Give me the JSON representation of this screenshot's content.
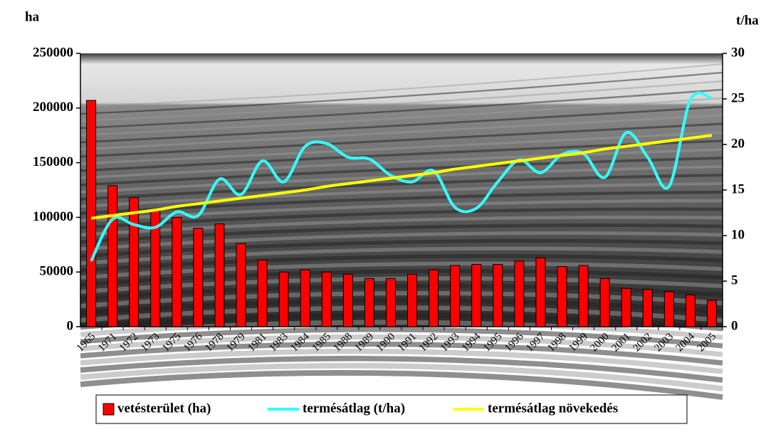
{
  "chart_data": {
    "type": "bar-line",
    "y_title": "ha",
    "y2_title": "t/ha",
    "categories": [
      "1965",
      "1971",
      "1972",
      "1973",
      "1975",
      "1976",
      "1978",
      "1979",
      "1981",
      "1983",
      "1984",
      "1985",
      "1988",
      "1989",
      "1990",
      "1991",
      "1992",
      "1993",
      "1994",
      "1995",
      "1996",
      "1997",
      "1998",
      "1999",
      "2000",
      "2001",
      "2002",
      "2003",
      "2004",
      "2005"
    ],
    "series": [
      {
        "name": "vetésterület (ha)",
        "type": "bar",
        "color": "#ff0000",
        "values": [
          207000,
          129000,
          118000,
          106000,
          100000,
          90000,
          94000,
          76000,
          61000,
          50000,
          52000,
          50000,
          48000,
          44000,
          44000,
          48000,
          52000,
          56000,
          57000,
          57000,
          60000,
          63000,
          55000,
          56000,
          44000,
          35000,
          34000,
          32000,
          29000,
          24000
        ]
      },
      {
        "name": "termésátlag (t/ha)",
        "type": "line",
        "axis": "y2",
        "color": "#33ffff",
        "values": [
          7.2,
          11.8,
          11.2,
          10.9,
          12.6,
          12.2,
          16.2,
          14.5,
          18.2,
          15.9,
          19.8,
          20.1,
          18.6,
          18.4,
          16.6,
          15.9,
          17.1,
          13.1,
          13.0,
          15.9,
          18.3,
          16.9,
          18.9,
          19.0,
          16.4,
          21.3,
          18.6,
          15.4,
          24.9,
          25.1
        ]
      },
      {
        "name": "termésátlag növekedés",
        "type": "line",
        "axis": "y2",
        "color": "#ffff00",
        "values": [
          11.9,
          12.2,
          12.5,
          12.8,
          13.2,
          13.5,
          13.8,
          14.1,
          14.4,
          14.7,
          15.0,
          15.4,
          15.7,
          16.0,
          16.3,
          16.6,
          16.9,
          17.3,
          17.6,
          17.9,
          18.2,
          18.5,
          18.8,
          19.1,
          19.5,
          19.8,
          20.1,
          20.4,
          20.7,
          21.0
        ]
      }
    ],
    "ylim": [
      0,
      250000
    ],
    "yticks": [
      0,
      50000,
      100000,
      150000,
      200000,
      250000
    ],
    "y2lim": [
      0,
      30
    ],
    "y2ticks": [
      0,
      5,
      10,
      15,
      20,
      25,
      30
    ]
  }
}
